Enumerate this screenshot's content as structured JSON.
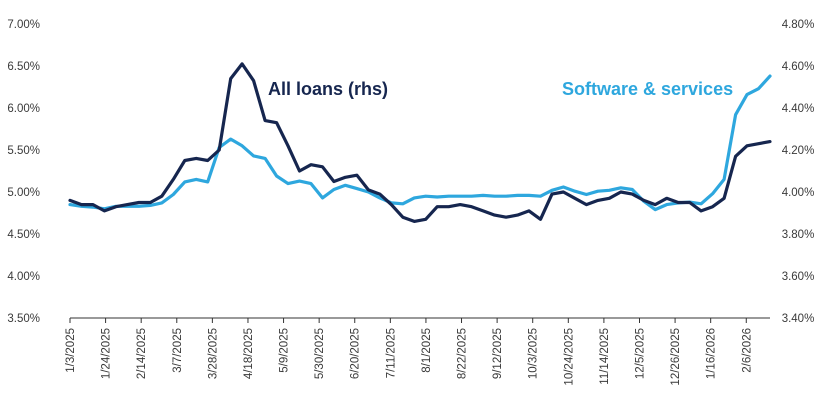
{
  "chart_data": {
    "type": "line",
    "title": "",
    "xlabel": "",
    "ylabel": "",
    "ylim_left": [
      3.5,
      7.0
    ],
    "ylim_right": [
      3.4,
      4.8
    ],
    "left_ticks": [
      "3.50%",
      "4.00%",
      "4.50%",
      "5.00%",
      "5.50%",
      "6.00%",
      "6.50%",
      "7.00%"
    ],
    "right_ticks": [
      "3.40%",
      "3.60%",
      "3.80%",
      "4.00%",
      "4.20%",
      "4.40%",
      "4.60%",
      "4.80%"
    ],
    "x_ticks": [
      "1/3/2025",
      "1/24/2025",
      "2/14/2025",
      "3/7/2025",
      "3/28/2025",
      "4/18/2025",
      "5/9/2025",
      "5/30/2025",
      "6/20/2025",
      "7/11/2025",
      "8/1/2025",
      "8/22/2025",
      "9/12/2025",
      "10/3/2025",
      "10/24/2025",
      "11/14/2025",
      "12/5/2025",
      "12/26/2025",
      "1/16/2026",
      "2/6/2026"
    ],
    "x_start": "1/3/2025",
    "x_end": "2/20/2026",
    "colors": {
      "all_loans": "#16264f",
      "software": "#2ea7de",
      "axis": "#333333"
    },
    "series": [
      {
        "name": "All loans (rhs)",
        "axis": "right",
        "values": [
          3.96,
          3.94,
          3.94,
          3.91,
          3.93,
          3.94,
          3.95,
          3.95,
          3.98,
          4.06,
          4.15,
          4.16,
          4.15,
          4.2,
          4.54,
          4.61,
          4.53,
          4.34,
          4.33,
          4.22,
          4.1,
          4.13,
          4.12,
          4.05,
          4.07,
          4.08,
          4.01,
          3.99,
          3.94,
          3.88,
          3.86,
          3.87,
          3.93,
          3.93,
          3.94,
          3.93,
          3.91,
          3.89,
          3.88,
          3.89,
          3.91,
          3.87,
          3.99,
          4.0,
          3.97,
          3.94,
          3.96,
          3.97,
          4.0,
          3.99,
          3.96,
          3.94,
          3.97,
          3.95,
          3.95,
          3.91,
          3.93,
          3.97,
          4.17,
          4.22,
          4.23,
          4.24
        ]
      },
      {
        "name": "Software & services",
        "axis": "left",
        "values": [
          4.85,
          4.83,
          4.82,
          4.8,
          4.83,
          4.83,
          4.83,
          4.84,
          4.87,
          4.97,
          5.12,
          5.15,
          5.12,
          5.53,
          5.63,
          5.55,
          5.43,
          5.4,
          5.19,
          5.1,
          5.13,
          5.1,
          4.93,
          5.03,
          5.08,
          5.04,
          5.0,
          4.93,
          4.87,
          4.86,
          4.93,
          4.95,
          4.94,
          4.95,
          4.95,
          4.95,
          4.96,
          4.95,
          4.95,
          4.96,
          4.96,
          4.95,
          5.02,
          5.06,
          5.01,
          4.97,
          5.01,
          5.02,
          5.05,
          5.03,
          4.89,
          4.79,
          4.85,
          4.87,
          4.88,
          4.86,
          4.98,
          5.15,
          5.92,
          6.16,
          6.23,
          6.38
        ]
      }
    ],
    "annotations": [
      {
        "text": "All loans (rhs)",
        "series": "All loans (rhs)"
      },
      {
        "text": "Software & services",
        "series": "Software & services"
      }
    ]
  }
}
